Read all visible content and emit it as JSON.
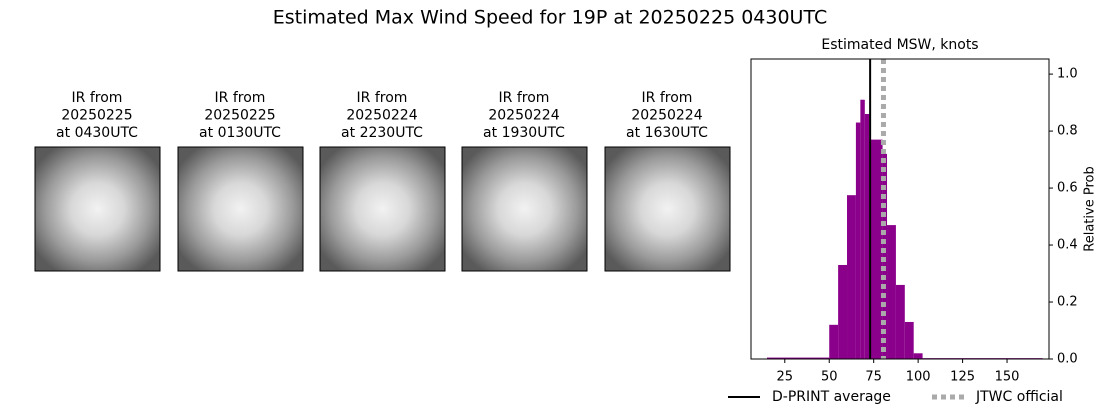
{
  "title": "Estimated Max Wind Speed for 19P at 20250225 0430UTC",
  "panels": [
    {
      "lines": [
        "IR from",
        "20250225",
        "at 0430UTC"
      ]
    },
    {
      "lines": [
        "IR from",
        "20250225",
        "at 0130UTC"
      ]
    },
    {
      "lines": [
        "IR from",
        "20250224",
        "at 2230UTC"
      ]
    },
    {
      "lines": [
        "IR from",
        "20250224",
        "at 1930UTC"
      ]
    },
    {
      "lines": [
        "IR from",
        "20250224",
        "at 1630UTC"
      ]
    }
  ],
  "chart_data": {
    "type": "histogram",
    "title": "Estimated MSW, knots",
    "y_label": "Relative Prob",
    "color": "#8b008b",
    "bins": [
      15,
      50,
      55,
      60,
      65,
      67.5,
      70,
      72.5,
      80,
      82.5,
      87.5,
      92.5,
      97.5,
      102.5,
      170
    ],
    "values": [
      0.005,
      0.12,
      0.33,
      0.575,
      0.83,
      0.91,
      0.86,
      0.77,
      0.72,
      0.47,
      0.26,
      0.13,
      0.02,
      0.003
    ],
    "xlim": [
      6,
      173.6
    ],
    "xticks": [
      25,
      50,
      75,
      100,
      125,
      150
    ],
    "ylim": [
      0,
      1.053
    ],
    "yticks": [
      {
        "value": 0,
        "label": "0.0"
      },
      0.2,
      0.4,
      0.6,
      0.8,
      {
        "value": 1,
        "label": "1.0"
      }
    ],
    "reference_lines": [
      {
        "name": "D-PRINT average",
        "value": 73,
        "color": "#000000",
        "style": "solid"
      },
      {
        "name": "JTWC official",
        "value": 80.5,
        "color": "#aaaaaa",
        "style": "dotted"
      }
    ]
  }
}
